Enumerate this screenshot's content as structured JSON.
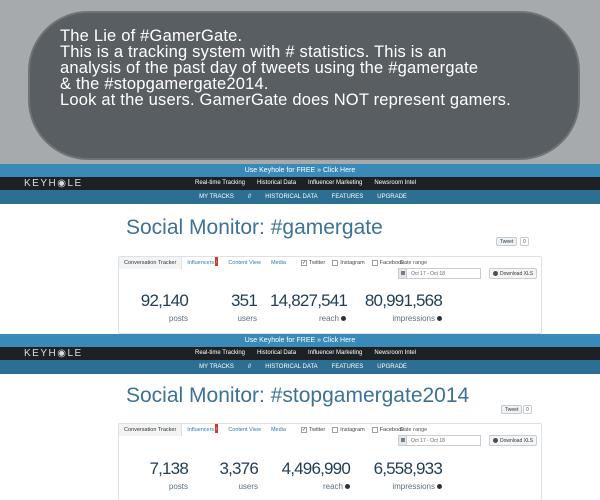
{
  "caption": {
    "title": "The Lie of #GamerGate.",
    "paragraph_lines": [
      "This is a tracking system with # statistics. This is an",
      "analysis of the past day of tweets using the #gamergate",
      "& the #stopgamergate2014."
    ],
    "closing": "Look at the users. GamerGate does NOT represent gamers."
  },
  "sections": [
    {
      "promo": "Use Keyhole for FREE » Click Here",
      "logo": "KEYH◉LE",
      "nav": [
        "Real-time Tracking",
        "Historical Data",
        "Influencer Marketing",
        "Newsroom Intel"
      ],
      "subnav": [
        "MY TRACKS",
        "//",
        "HISTORICAL DATA",
        "FEATURES",
        "UPGRADE"
      ],
      "title": "Social Monitor: #gamergate",
      "tweet_label": "Tweet",
      "tweet_count": "0",
      "tabs": [
        "Conversation Tracker",
        "Influencers",
        "Content View",
        "Media"
      ],
      "influencer_badge": "!",
      "checks": [
        {
          "label": "Twitter",
          "checked": true
        },
        {
          "label": "Instagram",
          "checked": false
        },
        {
          "label": "Facebook",
          "checked": false
        }
      ],
      "date_label": "Date range",
      "date_value": "Oct 17 - Oct 18",
      "download": "Download XLS",
      "stats": [
        {
          "value": "92,140",
          "label": "posts"
        },
        {
          "value": "351",
          "label": "users"
        },
        {
          "value": "14,827,541",
          "label": "reach"
        },
        {
          "value": "80,991,568",
          "label": "impressions"
        }
      ]
    },
    {
      "promo": "Use Keyhole for FREE » Click Here",
      "logo": "KEYH◉LE",
      "nav": [
        "Real-time Tracking",
        "Historical Data",
        "Influencer Marketing",
        "Newsroom Intel"
      ],
      "subnav": [
        "MY TRACKS",
        "//",
        "HISTORICAL DATA",
        "FEATURES",
        "UPGRADE"
      ],
      "title": "Social Monitor: #stopgamergate2014",
      "tweet_label": "Tweet",
      "tweet_count": "0",
      "tabs": [
        "Conversation Tracker",
        "Influencers",
        "Content View",
        "Media"
      ],
      "influencer_badge": "!",
      "checks": [
        {
          "label": "Twitter",
          "checked": true
        },
        {
          "label": "Instagram",
          "checked": false
        },
        {
          "label": "Facebook",
          "checked": false
        }
      ],
      "date_label": "Date range",
      "date_value": "Oct 17 - Oct 18",
      "download": "Download XLS",
      "stats": [
        {
          "value": "7,138",
          "label": "posts"
        },
        {
          "value": "3,376",
          "label": "users"
        },
        {
          "value": "4,496,990",
          "label": "reach"
        },
        {
          "value": "6,558,933",
          "label": "impressions"
        }
      ]
    }
  ],
  "colors": {
    "caption_bg": "#a7aaad",
    "bubble": "#595e63",
    "promo_bar": "#3a8ab8",
    "nav_bar": "#1e2124",
    "subnav_bar": "#2c6f93",
    "title": "#3d7295"
  }
}
